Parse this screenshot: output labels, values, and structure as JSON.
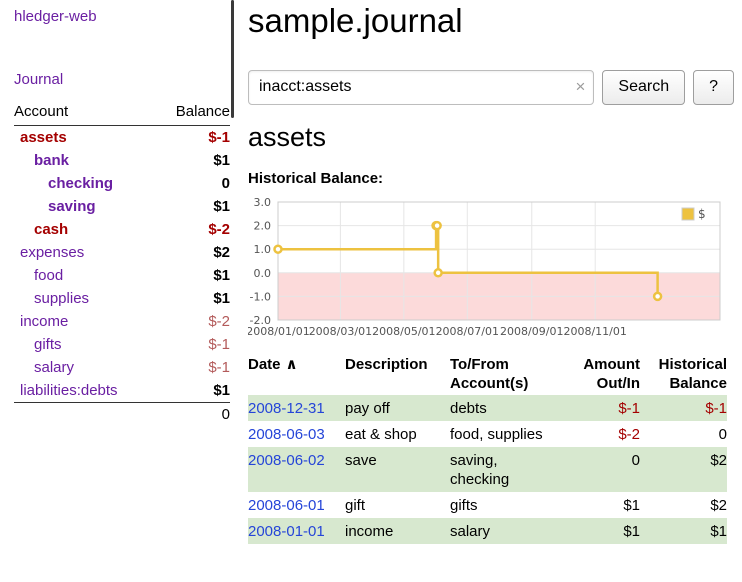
{
  "app": {
    "title": "hledger-web",
    "journal_link": "Journal"
  },
  "accounts_panel": {
    "account_header": "Account",
    "balance_header": "Balance",
    "rows": [
      {
        "name": "assets",
        "balance": "$-1",
        "indent": 0,
        "selected": true,
        "name_negative": true,
        "balance_negative": "strong"
      },
      {
        "name": "bank",
        "balance": "$1",
        "indent": 1,
        "selected": true,
        "name_negative": false,
        "balance_negative": null
      },
      {
        "name": "checking",
        "balance": "0",
        "indent": 2,
        "selected": true,
        "name_negative": false,
        "balance_negative": null
      },
      {
        "name": "saving",
        "balance": "$1",
        "indent": 2,
        "selected": true,
        "name_negative": false,
        "balance_negative": null
      },
      {
        "name": "cash",
        "balance": "$-2",
        "indent": 1,
        "selected": true,
        "name_negative": true,
        "balance_negative": "strong"
      },
      {
        "name": "expenses",
        "balance": "$2",
        "indent": 0,
        "selected": false,
        "name_negative": false,
        "balance_negative": null
      },
      {
        "name": "food",
        "balance": "$1",
        "indent": 1,
        "selected": false,
        "name_negative": false,
        "balance_negative": null
      },
      {
        "name": "supplies",
        "balance": "$1",
        "indent": 1,
        "selected": false,
        "name_negative": false,
        "balance_negative": null
      },
      {
        "name": "income",
        "balance": "$-2",
        "indent": 0,
        "selected": false,
        "name_negative": false,
        "balance_negative": "soft"
      },
      {
        "name": "gifts",
        "balance": "$-1",
        "indent": 1,
        "selected": false,
        "name_negative": false,
        "balance_negative": "soft"
      },
      {
        "name": "salary",
        "balance": "$-1",
        "indent": 1,
        "selected": false,
        "name_negative": false,
        "balance_negative": "soft"
      },
      {
        "name": "liabilities:debts",
        "balance": "$1",
        "indent": 0,
        "selected": false,
        "name_negative": false,
        "balance_negative": null
      }
    ],
    "total": "0"
  },
  "main": {
    "title": "sample.journal",
    "search": {
      "value": "inacct:assets",
      "clear_icon": "×",
      "search_button": "Search",
      "help_button": "?"
    },
    "account_heading": "assets",
    "chart_heading": "Historical Balance:"
  },
  "chart_data": {
    "type": "line",
    "step": true,
    "title": "Historical Balance",
    "series": [
      {
        "name": "$",
        "color": "#edc240",
        "points": [
          [
            "2008-01-01",
            1
          ],
          [
            "2008-06-01",
            2
          ],
          [
            "2008-06-02",
            2
          ],
          [
            "2008-06-03",
            0
          ],
          [
            "2008-12-31",
            -1
          ]
        ]
      }
    ],
    "y_axis": {
      "min": -2,
      "max": 3,
      "ticks": [
        3,
        2,
        1,
        0,
        -1,
        -2
      ]
    },
    "x_axis": {
      "start": "2008-01-01",
      "end": "2009-03-01",
      "ticks": [
        {
          "label": "2008/01/01",
          "date": "2008-01-01"
        },
        {
          "label": "2008/03/01",
          "date": "2008-03-01"
        },
        {
          "label": "2008/05/01",
          "date": "2008-05-01"
        },
        {
          "label": "2008/07/01",
          "date": "2008-07-01"
        },
        {
          "label": "2008/09/01",
          "date": "2008-09-01"
        },
        {
          "label": "2008/11/01",
          "date": "2008-11-01"
        }
      ]
    },
    "legend": {
      "label": "$",
      "position": "top-right"
    },
    "negative_region_color": "#fcdada",
    "grid_color": "#e6e6e6",
    "axis_text_color": "#545454",
    "grid": true
  },
  "register": {
    "headers": {
      "date": "Date",
      "sort_icon": "∧",
      "description": "Description",
      "account_line1": "To/From",
      "account_line2": "Account(s)",
      "amount_line1": "Amount",
      "amount_line2": "Out/In",
      "balance_line1": "Historical",
      "balance_line2": "Balance"
    },
    "rows": [
      {
        "date": "2008-12-31",
        "description": "pay off",
        "accounts": "debts",
        "amount": "$-1",
        "balance": "$-1",
        "shaded": true
      },
      {
        "date": "2008-06-03",
        "description": "eat & shop",
        "accounts": "food, supplies",
        "amount": "$-2",
        "balance": "0",
        "shaded": false
      },
      {
        "date": "2008-06-02",
        "description": "save",
        "accounts": "saving, checking",
        "amount": "0",
        "balance": "$2",
        "shaded": true
      },
      {
        "date": "2008-06-01",
        "description": "gift",
        "accounts": "gifts",
        "amount": "$1",
        "balance": "$2",
        "shaded": false
      },
      {
        "date": "2008-01-01",
        "description": "income",
        "accounts": "salary",
        "amount": "$1",
        "balance": "$1",
        "shaded": true
      }
    ]
  }
}
